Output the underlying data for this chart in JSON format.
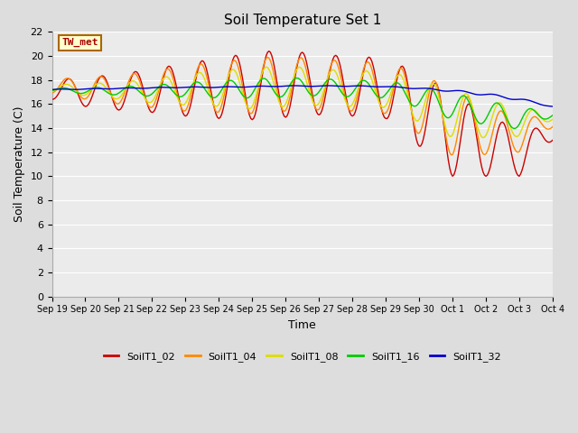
{
  "title": "Soil Temperature Set 1",
  "xlabel": "Time",
  "ylabel": "Soil Temperature (C)",
  "ylim": [
    0,
    22
  ],
  "yticks": [
    0,
    2,
    4,
    6,
    8,
    10,
    12,
    14,
    16,
    18,
    20,
    22
  ],
  "annotation_text": "TW_met",
  "annotation_color": "#aa0000",
  "annotation_bg": "#ffffcc",
  "annotation_border": "#aa6600",
  "series_colors": {
    "SoilT1_02": "#cc0000",
    "SoilT1_04": "#ff8800",
    "SoilT1_08": "#dddd00",
    "SoilT1_16": "#00cc00",
    "SoilT1_32": "#0000cc"
  },
  "bg_color": "#dddddd",
  "plot_bg": "#ebebeb",
  "grid_color": "#ffffff",
  "linewidth": 1.0,
  "figsize": [
    6.4,
    4.8
  ],
  "dpi": 100,
  "tick_labels": [
    "Sep 19",
    "Sep 20",
    "Sep 21",
    "Sep 22",
    "Sep 23",
    "Sep 24",
    "Sep 25",
    "Sep 26",
    "Sep 27",
    "Sep 28",
    "Sep 29",
    "Sep 30",
    "Oct 1",
    "Oct 2",
    "Oct 3",
    "Oct 4"
  ]
}
